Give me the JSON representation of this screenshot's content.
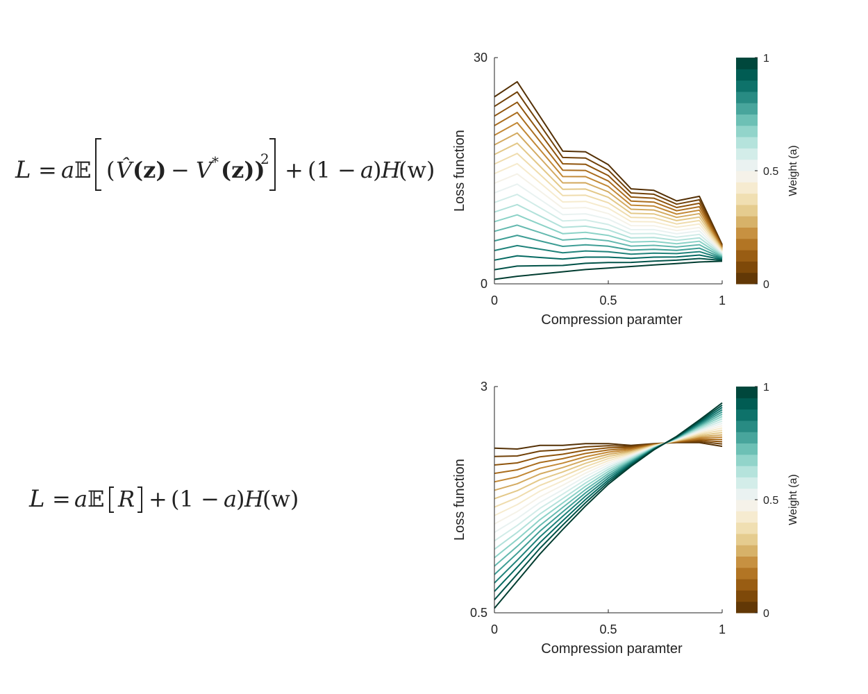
{
  "equations": {
    "top": {
      "L": "L",
      "eq": "=",
      "a": "a",
      "E": "𝔼",
      "lparen": "(",
      "Vhat": "V̂",
      "z1": "(z)",
      "minus": "−",
      "Vstar": "V",
      "star": "*",
      "z2": "(z))",
      "sq": "2",
      "plus": "+",
      "one_minus": "(1 −",
      "a2": "a",
      "rparen": ")",
      "H": "H",
      "w": "(w)"
    },
    "bottom": {
      "L": "L",
      "eq": "=",
      "a": "a",
      "E": "𝔼",
      "R": "R",
      "plus": "+",
      "one_minus": "(1 −",
      "a2": "a",
      "rparen": ")",
      "H": "H",
      "w": "(w)"
    }
  },
  "colors": {
    "brown_dark": "#543005",
    "brown": "#8c510a",
    "tan": "#bf812d",
    "beige": "#dfc27d",
    "cream": "#f6e8c3",
    "white": "#f5f5f5",
    "mint": "#c7eae5",
    "teal_light": "#80cdc1",
    "teal": "#35978f",
    "teal_dark": "#01665e",
    "teal_darkest": "#003c30"
  },
  "chart_data": [
    {
      "type": "line",
      "title": "",
      "xlabel": "Compression paramter",
      "ylabel": "Loss function",
      "xlim": [
        0,
        1
      ],
      "ylim": [
        0,
        30
      ],
      "xticks": [
        "0",
        "0.5",
        "1"
      ],
      "yticks": [
        "0",
        "30"
      ],
      "x": [
        0,
        0.1,
        0.2,
        0.3,
        0.4,
        0.5,
        0.6,
        0.7,
        0.8,
        0.9,
        1.0
      ],
      "series_endpoints": {
        "weight_0": [
          24.8,
          26.8,
          22.2,
          17.6,
          17.5,
          15.8,
          12.6,
          12.4,
          11.0,
          11.6,
          5.2
        ],
        "weight_1": [
          0.6,
          1.0,
          1.3,
          1.6,
          1.9,
          2.1,
          2.3,
          2.5,
          2.7,
          2.9,
          3.0
        ]
      },
      "series_count": 20,
      "colorbar": {
        "label": "Weight (a)",
        "ticks": [
          "0",
          "0.5",
          "1"
        ],
        "range": [
          0,
          1
        ]
      }
    },
    {
      "type": "line",
      "title": "",
      "xlabel": "Compression paramter",
      "ylabel": "Loss function",
      "xlim": [
        0,
        1
      ],
      "ylim": [
        0.5,
        3
      ],
      "xticks": [
        "0",
        "0.5",
        "1"
      ],
      "yticks": [
        "0.5",
        "3"
      ],
      "x": [
        0,
        0.1,
        0.2,
        0.3,
        0.4,
        0.5,
        0.6,
        0.7,
        0.8,
        0.9,
        1.0
      ],
      "series_endpoints": {
        "weight_0": [
          2.32,
          2.31,
          2.35,
          2.35,
          2.37,
          2.37,
          2.35,
          2.37,
          2.38,
          2.38,
          2.34
        ],
        "weight_1": [
          0.55,
          0.85,
          1.15,
          1.42,
          1.68,
          1.92,
          2.12,
          2.3,
          2.45,
          2.63,
          2.82
        ]
      },
      "series_count": 20,
      "colorbar": {
        "label": "Weight (a)",
        "ticks": [
          "0",
          "0.5",
          "1"
        ],
        "range": [
          0,
          1
        ]
      }
    }
  ]
}
